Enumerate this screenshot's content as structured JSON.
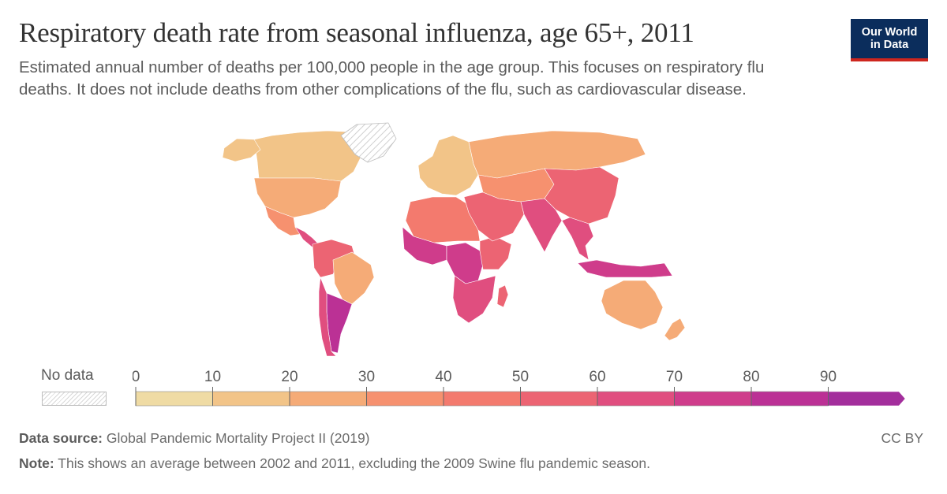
{
  "header": {
    "title": "Respiratory death rate from seasonal influenza, age 65+, 2011",
    "subtitle": "Estimated annual number of deaths per 100,000 people in the age group. This focuses on respiratory flu deaths. It does not include deaths from other complications of the flu, such as cardiovascular disease.",
    "logo_text": "Our World\nin Data"
  },
  "legend": {
    "no_data_label": "No data",
    "ticks": [
      "0",
      "10",
      "20",
      "30",
      "40",
      "50",
      "60",
      "70",
      "80",
      "90"
    ],
    "bins": [
      {
        "from": 0,
        "to": 10,
        "color": "#efdba4"
      },
      {
        "from": 10,
        "to": 20,
        "color": "#f2c488"
      },
      {
        "from": 20,
        "to": 30,
        "color": "#f5ab77"
      },
      {
        "from": 30,
        "to": 40,
        "color": "#f6916f"
      },
      {
        "from": 40,
        "to": 50,
        "color": "#f37a6e"
      },
      {
        "from": 50,
        "to": 60,
        "color": "#ec6473"
      },
      {
        "from": 60,
        "to": 70,
        "color": "#e04e7f"
      },
      {
        "from": 70,
        "to": 80,
        "color": "#cf3c8b"
      },
      {
        "from": 80,
        "to": 90,
        "color": "#bb3195"
      },
      {
        "from": 90,
        "to": null,
        "color": "#a32e9c"
      }
    ],
    "no_data_color": "#e6e6e6"
  },
  "map": {
    "regions": [
      {
        "name": "Canada",
        "value": 18
      },
      {
        "name": "Alaska",
        "value": 15
      },
      {
        "name": "United States",
        "value": 24
      },
      {
        "name": "Greenland",
        "value": null
      },
      {
        "name": "Mexico",
        "value": 38
      },
      {
        "name": "Central America",
        "value": 62
      },
      {
        "name": "Northern South America",
        "value": 52
      },
      {
        "name": "Brazil",
        "value": 27
      },
      {
        "name": "Argentina",
        "value": 88
      },
      {
        "name": "Chile",
        "value": 62
      },
      {
        "name": "Western Europe",
        "value": 12
      },
      {
        "name": "Russia",
        "value": 20
      },
      {
        "name": "North Africa",
        "value": 42
      },
      {
        "name": "West Africa",
        "value": 70
      },
      {
        "name": "Central Africa",
        "value": 75
      },
      {
        "name": "East Africa",
        "value": 58
      },
      {
        "name": "Southern Africa",
        "value": 60
      },
      {
        "name": "Madagascar",
        "value": 58
      },
      {
        "name": "Middle East",
        "value": 52
      },
      {
        "name": "Central Asia",
        "value": 38
      },
      {
        "name": "China",
        "value": 52
      },
      {
        "name": "India",
        "value": 62
      },
      {
        "name": "Southeast Asia",
        "value": 68
      },
      {
        "name": "Indonesia",
        "value": 75
      },
      {
        "name": "Australia",
        "value": 22
      },
      {
        "name": "New Zealand",
        "value": 22
      }
    ]
  },
  "footer": {
    "source_label": "Data source:",
    "source_text": "Global Pandemic Mortality Project II (2019)",
    "note_label": "Note:",
    "note_text": "This shows an average between 2002 and 2011, excluding the 2009 Swine flu pandemic season.",
    "license": "CC BY"
  }
}
